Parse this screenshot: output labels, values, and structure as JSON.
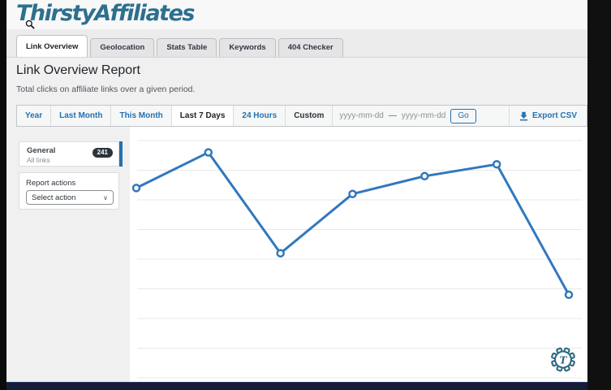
{
  "logo": {
    "text": "ThirstyAffiliates"
  },
  "icons": {
    "magnifier": "magnifier-cursor",
    "export": "download-icon",
    "gear": "thirsty-gear-settings",
    "chevron": "∨"
  },
  "tabs": [
    {
      "label": "Link Overview",
      "active": true
    },
    {
      "label": "Geolocation",
      "active": false
    },
    {
      "label": "Stats Table",
      "active": false
    },
    {
      "label": "Keywords",
      "active": false
    },
    {
      "label": "404 Checker",
      "active": false
    }
  ],
  "page": {
    "title": "Link Overview Report",
    "subtitle": "Total clicks on affiliate links over a given period."
  },
  "filters": {
    "year": "Year",
    "last_month": "Last Month",
    "this_month": "This Month",
    "last_7_days": "Last 7 Days",
    "hours_24": "24 Hours",
    "custom": "Custom",
    "date_from_placeholder": "yyyy-mm-dd",
    "date_to_placeholder": "yyyy-mm-dd",
    "date_separator": "—",
    "go_label": "Go",
    "export_label": "Export CSV"
  },
  "sidebar": {
    "general": {
      "title": "General",
      "subtitle": "All links",
      "badge": "241"
    },
    "report_actions": {
      "label": "Report actions",
      "selected": "Select action"
    }
  },
  "chart_data": {
    "type": "line",
    "title": "",
    "xlabel": "",
    "ylabel": "",
    "categories": [
      "",
      "",
      "",
      "",
      "",
      "",
      ""
    ],
    "x_axis_labels_visible": false,
    "y_axis_labels_visible": false,
    "values": [
      64,
      76,
      42,
      62,
      68,
      72,
      28
    ],
    "ylim": [
      0,
      80
    ],
    "gridline_step": 10,
    "grid": true,
    "legend": "none",
    "line_color": "#3178bd",
    "marker": "open-circle"
  },
  "colors": {
    "accent_blue": "#2271b1",
    "logo_teal": "#2d6f8e",
    "chart_line": "#3178bd",
    "gridline": "#e8e8e8",
    "badge_bg": "#2c3338",
    "page_bg": "#f0f0f1"
  }
}
